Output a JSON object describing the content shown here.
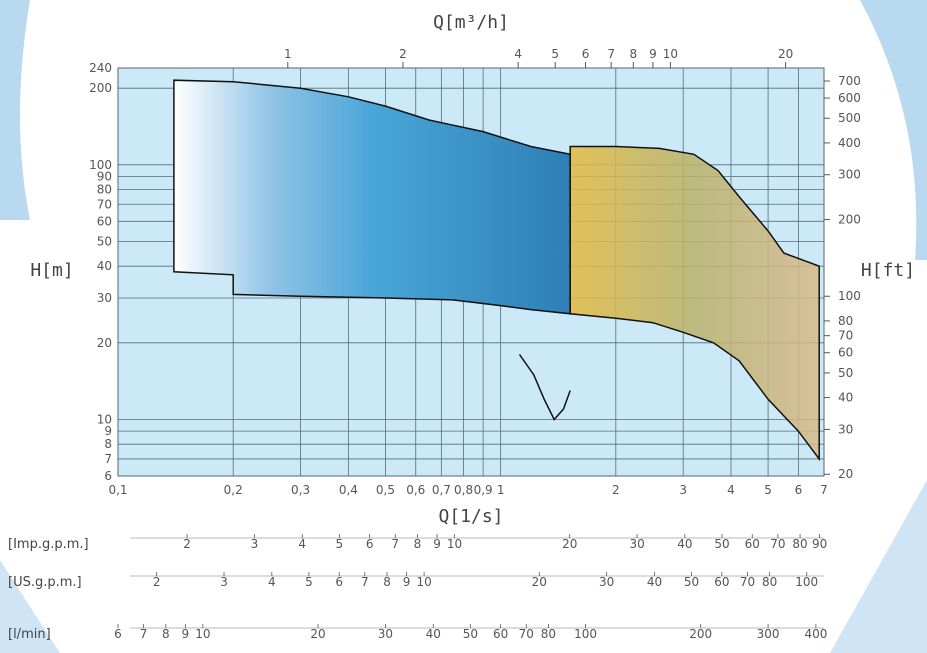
{
  "chart_data": {
    "type": "area",
    "title": "",
    "xlabel_bottom": "Q[1/s]",
    "xlabel_top": "Q[m³/h]",
    "ylabel_left": "H[m]",
    "ylabel_right": "H[ft]",
    "x_scale": "log",
    "y_scale": "log",
    "xlim": [
      0.1,
      7
    ],
    "ylim": [
      6,
      240
    ],
    "grid": true,
    "x_ticks": [
      "0,1",
      "0,2",
      "0,3",
      "0,4",
      "0,5",
      "0,6",
      "0,7",
      "0,8",
      "0,9",
      "1",
      "2",
      "3",
      "4",
      "5",
      "6",
      "7"
    ],
    "y_ticks": [
      "6",
      "7",
      "8",
      "9",
      "10",
      "20",
      "30",
      "40",
      "50",
      "60",
      "70",
      "80",
      "90",
      "100",
      "200",
      "240"
    ],
    "top_ticks": [
      "1",
      "2",
      "4",
      "5",
      "6",
      "7",
      "8",
      "9",
      "10",
      "20"
    ],
    "right_ticks": [
      "20",
      "30",
      "40",
      "50",
      "60",
      "70",
      "80",
      "100",
      "200",
      "300",
      "400",
      "500",
      "600",
      "700"
    ],
    "extra_scales": [
      {
        "label": "[Imp.g.p.m.]",
        "ticks": [
          "2",
          "3",
          "4",
          "5",
          "6",
          "7",
          "8",
          "9",
          "10",
          "20",
          "30",
          "40",
          "50",
          "60",
          "70",
          "80",
          "90"
        ]
      },
      {
        "label": "[US.g.p.m.]",
        "ticks": [
          "2",
          "3",
          "4",
          "5",
          "6",
          "7",
          "8",
          "9",
          "10",
          "20",
          "30",
          "40",
          "50",
          "60",
          "70",
          "80",
          "100"
        ]
      },
      {
        "label": "[l/min]",
        "ticks": [
          "6",
          "7",
          "8",
          "9",
          "10",
          "20",
          "30",
          "40",
          "50",
          "60",
          "70",
          "80",
          "100",
          "200",
          "300",
          "400"
        ]
      }
    ],
    "series": [
      {
        "color": "#3d8fc6",
        "points": [
          [
            0.14,
            38
          ],
          [
            0.14,
            215
          ],
          [
            0.2,
            212
          ],
          [
            0.3,
            200
          ],
          [
            0.4,
            185
          ],
          [
            0.5,
            170
          ],
          [
            0.65,
            150
          ],
          [
            0.72,
            145
          ],
          [
            0.9,
            135
          ],
          [
            1.2,
            118
          ],
          [
            1.52,
            110
          ],
          [
            1.52,
            26
          ],
          [
            1.2,
            27
          ],
          [
            1.0,
            28
          ],
          [
            0.75,
            29.5
          ],
          [
            0.5,
            30
          ],
          [
            0.3,
            30.5
          ],
          [
            0.2,
            31
          ],
          [
            0.2,
            37
          ],
          [
            0.14,
            38
          ]
        ],
        "notch_points": [
          [
            1.12,
            18
          ],
          [
            1.22,
            15
          ],
          [
            1.3,
            12
          ],
          [
            1.38,
            10
          ],
          [
            1.46,
            11
          ],
          [
            1.52,
            13
          ]
        ]
      },
      {
        "color": "#d9b060",
        "points": [
          [
            1.52,
            118
          ],
          [
            2.0,
            118
          ],
          [
            2.6,
            116
          ],
          [
            3.2,
            110
          ],
          [
            3.7,
            95
          ],
          [
            4.2,
            75
          ],
          [
            5.0,
            55
          ],
          [
            5.5,
            45
          ],
          [
            6.8,
            40
          ],
          [
            6.8,
            7
          ],
          [
            6.0,
            9
          ],
          [
            5.0,
            12
          ],
          [
            4.2,
            17
          ],
          [
            3.6,
            20
          ],
          [
            3.0,
            22
          ],
          [
            2.5,
            24
          ],
          [
            2.0,
            25
          ],
          [
            1.52,
            26
          ]
        ]
      }
    ]
  }
}
